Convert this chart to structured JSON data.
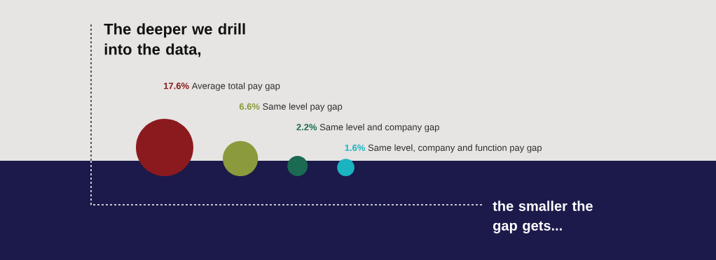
{
  "chart_data": {
    "type": "other",
    "title": "The deeper we drill into the data,",
    "categories": [
      "Average total pay gap",
      "Same level pay gap",
      "Same level and company gap",
      "Same level, company and function pay gap"
    ],
    "values": [
      17.6,
      6.6,
      2.2,
      1.6
    ],
    "value_labels": [
      "17.6%",
      "6.6%",
      "2.2%",
      "1.6%"
    ],
    "colors": [
      "#8b1a1e",
      "#8a9a3c",
      "#1a6b52",
      "#1ab3c0"
    ],
    "annotations": [
      "the smaller the gap gets..."
    ]
  }
}
